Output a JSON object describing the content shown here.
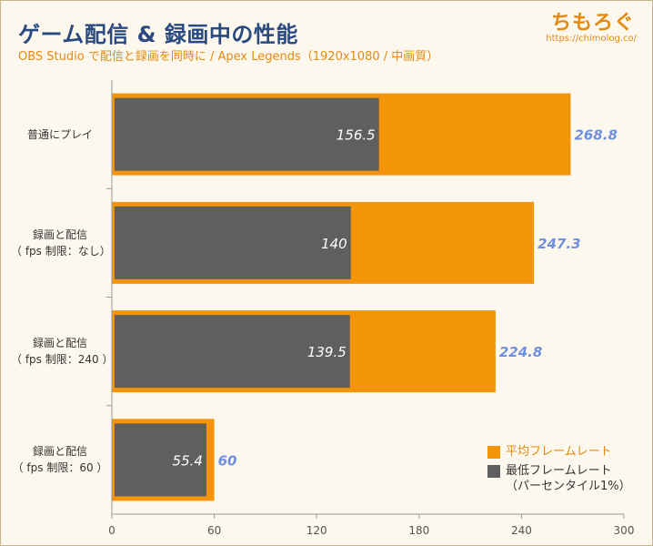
{
  "header": {
    "title": "ゲーム配信 & 録画中の性能",
    "subtitle": "OBS Studio で配信と録画を同時に / Apex Legends（1920x1080 / 中画質）",
    "brand": "ちもろぐ",
    "url": "https://chimolog.co/"
  },
  "colors": {
    "average": "#f49408",
    "minimum": "#5f5f5f",
    "value_label_avg": "#6e8fe0",
    "value_label_min": "#ffffff"
  },
  "chart_data": {
    "type": "bar",
    "orientation": "horizontal",
    "categories": [
      [
        "普通にプレイ"
      ],
      [
        "録画と配信",
        "（ fps 制限：なし）"
      ],
      [
        "録画と配信",
        "（ fps 制限：240 ）"
      ],
      [
        "録画と配信",
        "（ fps 制限：60 ）"
      ]
    ],
    "series": [
      {
        "name": "平均フレームレート",
        "values": [
          268.8,
          247.3,
          224.8,
          60
        ]
      },
      {
        "name": "最低フレームレート",
        "name_note": "（パーセンタイル1%）",
        "values": [
          156.5,
          140,
          139.5,
          55.4
        ]
      }
    ],
    "xlim": [
      0,
      300
    ],
    "xticks": [
      "0",
      "60",
      "120",
      "180",
      "240",
      "300"
    ],
    "legend_position": "bottom-right"
  }
}
